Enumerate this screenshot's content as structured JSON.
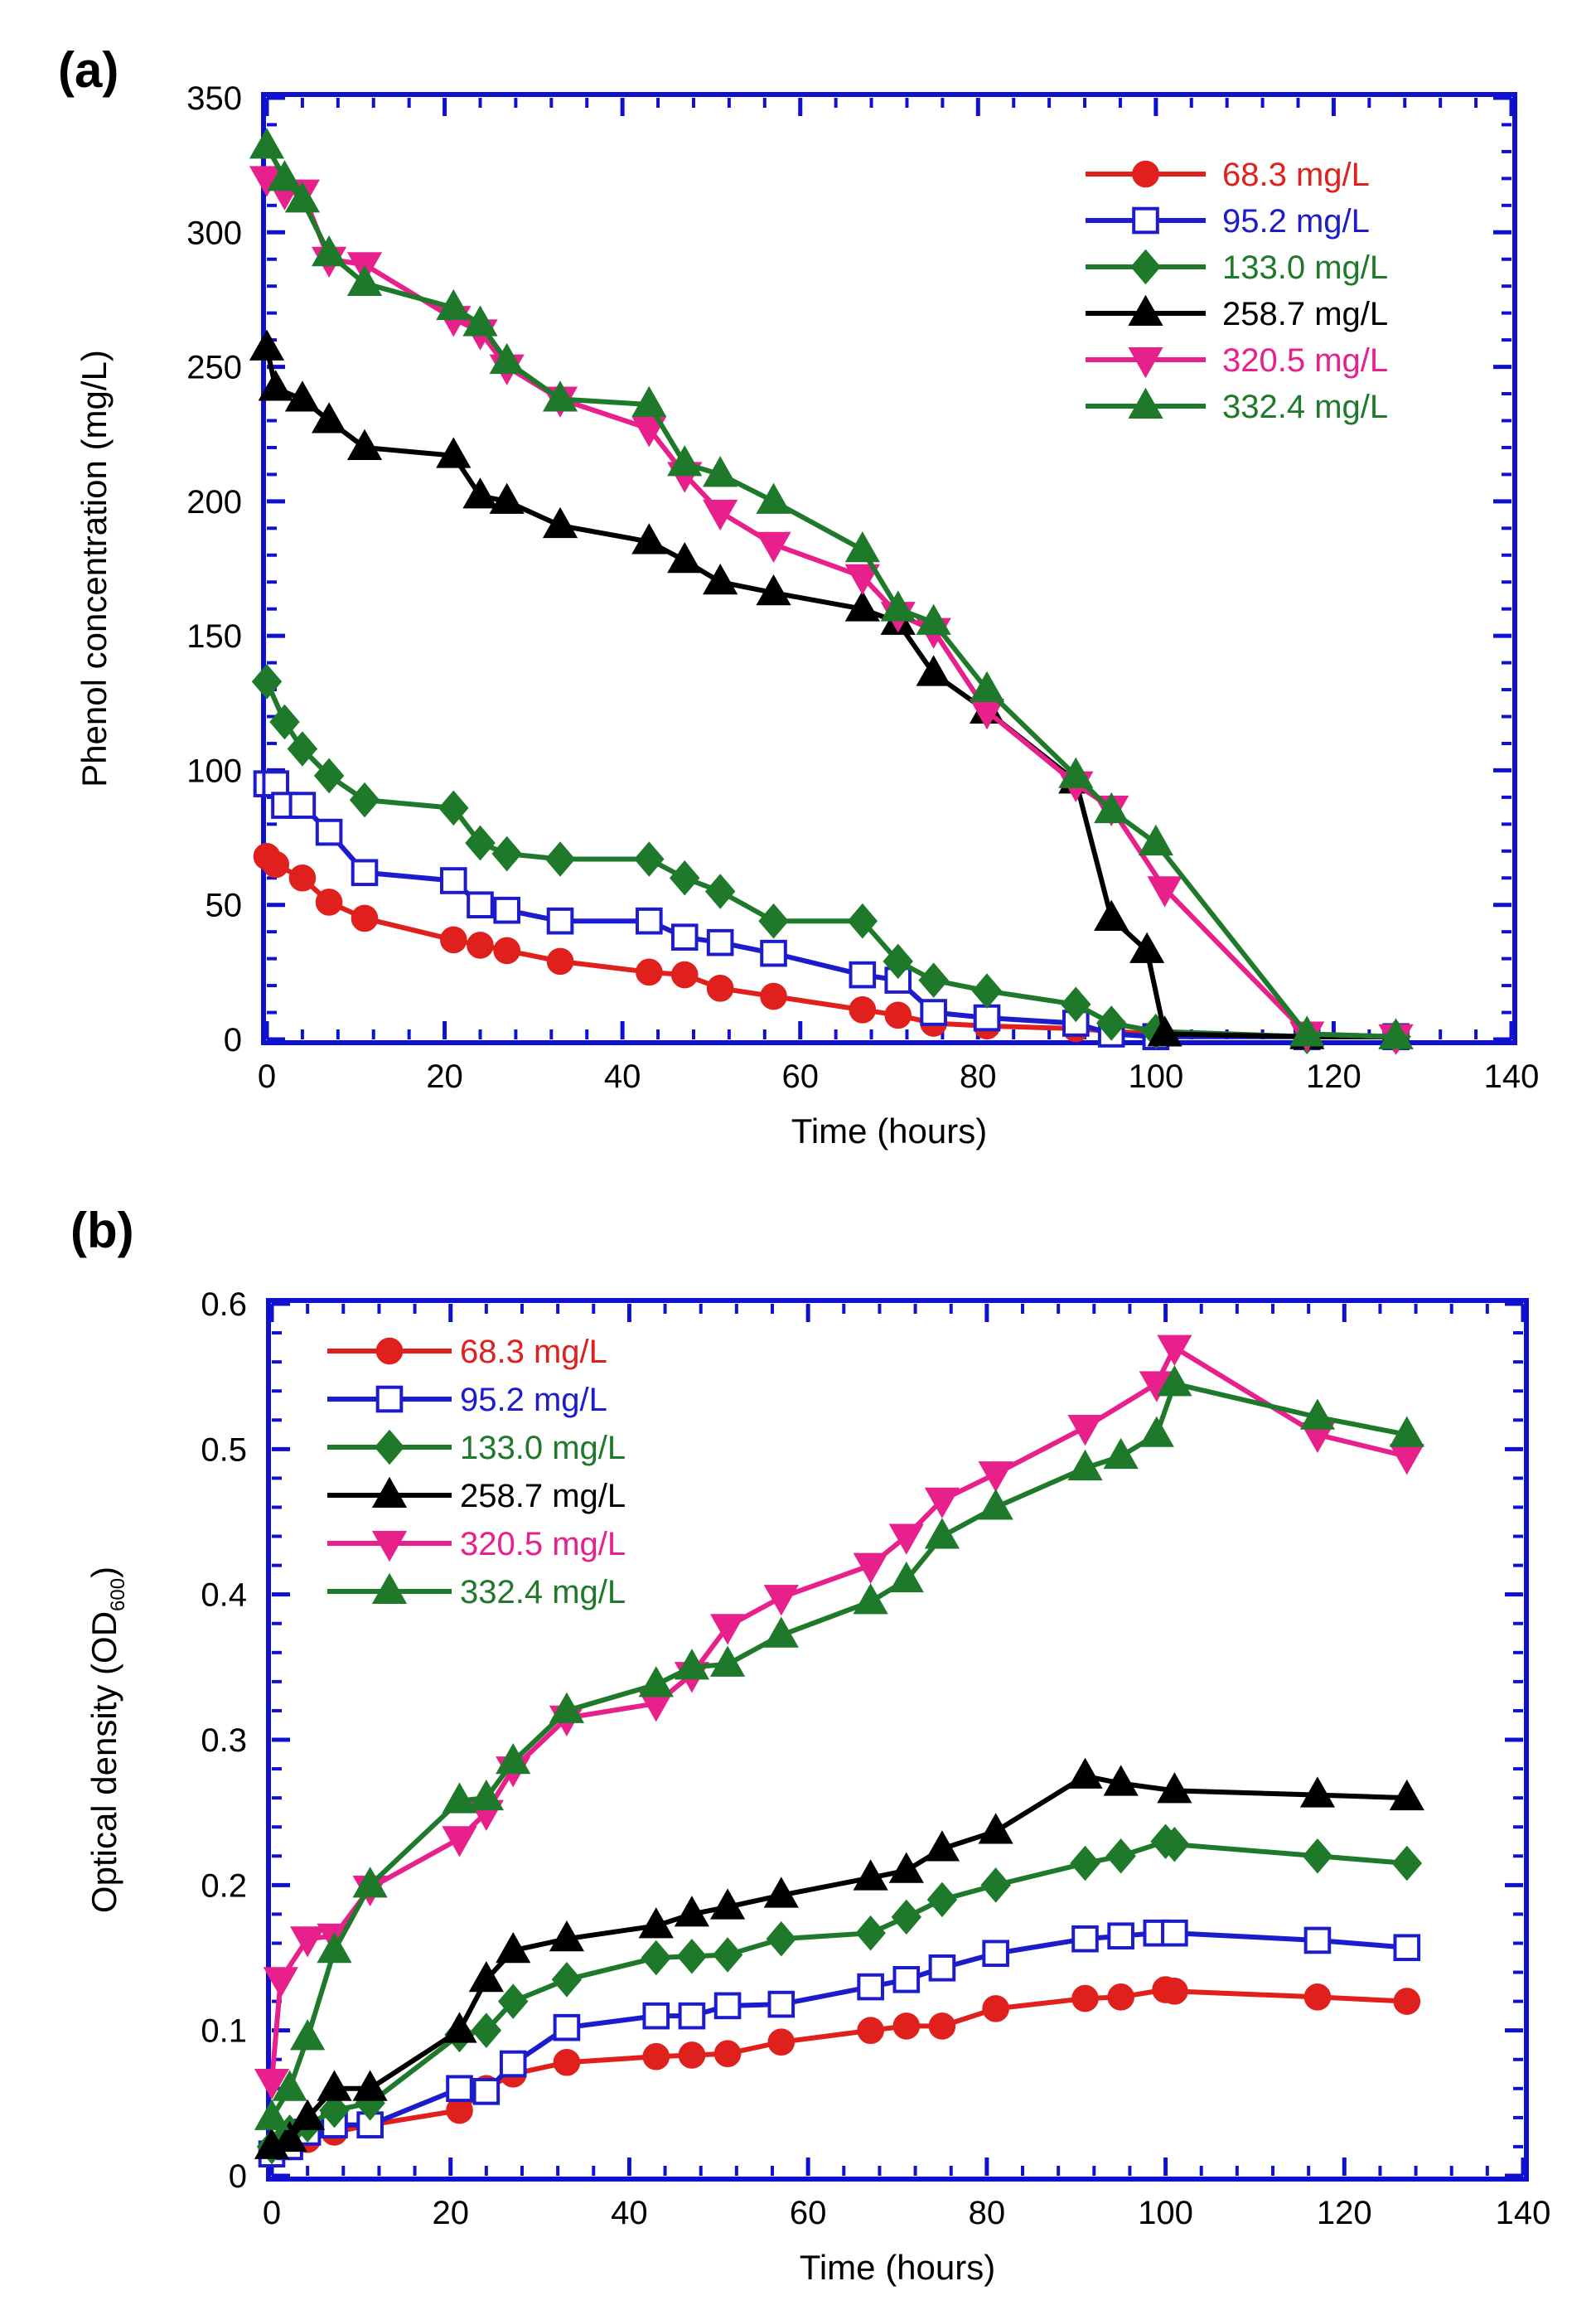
{
  "panels": [
    {
      "label": "(a)"
    },
    {
      "label": "(b)"
    }
  ],
  "chart_data": [
    {
      "type": "line",
      "xlabel": "Time (hours)",
      "ylabel": "Phenol concentration (mg/L)",
      "xlim": [
        0,
        140
      ],
      "ylim": [
        0,
        350
      ],
      "xticks": [
        0,
        20,
        40,
        60,
        80,
        100,
        120,
        140
      ],
      "yticks": [
        0,
        50,
        100,
        150,
        200,
        250,
        300,
        350
      ],
      "grid": false,
      "legend_position": "top-right",
      "frame_color": "#1010d0",
      "series": [
        {
          "name": "68.3 mg/L",
          "color": "#e0201c",
          "marker": "circle",
          "filled": true,
          "x": [
            0,
            1,
            4,
            7,
            11,
            21,
            24,
            27,
            33,
            43,
            47,
            51,
            57,
            67,
            71,
            75,
            81,
            91,
            95,
            100,
            117,
            127
          ],
          "y": [
            68,
            65,
            60,
            51,
            45,
            37,
            35,
            33,
            29,
            25,
            24,
            19,
            16,
            11,
            9,
            6,
            5,
            4,
            3,
            2,
            1,
            1
          ]
        },
        {
          "name": "95.2 mg/L",
          "color": "#1c1ccc",
          "marker": "square",
          "filled": false,
          "x": [
            0,
            1,
            2,
            4,
            7,
            11,
            21,
            24,
            27,
            33,
            43,
            47,
            51,
            57,
            67,
            71,
            75,
            81,
            91,
            95,
            100,
            117,
            127
          ],
          "y": [
            95,
            95,
            87,
            87,
            77,
            62,
            59,
            50,
            48,
            44,
            44,
            38,
            36,
            32,
            24,
            22,
            10,
            8,
            6,
            2,
            1,
            1,
            1
          ]
        },
        {
          "name": "133.0 mg/L",
          "color": "#1e7a2a",
          "marker": "diamond",
          "filled": true,
          "x": [
            0,
            2,
            4,
            7,
            11,
            21,
            24,
            27,
            33,
            43,
            47,
            51,
            57,
            67,
            71,
            75,
            81,
            91,
            95,
            100,
            117,
            127
          ],
          "y": [
            133,
            118,
            108,
            98,
            89,
            86,
            73,
            69,
            67,
            67,
            60,
            55,
            44,
            44,
            29,
            22,
            18,
            13,
            6,
            3,
            1,
            1
          ]
        },
        {
          "name": "258.7 mg/L",
          "color": "#000000",
          "marker": "triangle-up",
          "filled": true,
          "x": [
            0,
            1,
            4,
            7,
            11,
            21,
            24,
            27,
            33,
            43,
            47,
            51,
            57,
            67,
            71,
            75,
            81,
            91,
            95,
            99,
            101,
            117,
            127
          ],
          "y": [
            257,
            242,
            238,
            230,
            220,
            217,
            202,
            200,
            191,
            185,
            178,
            170,
            166,
            160,
            155,
            136,
            122,
            96,
            45,
            33,
            2,
            1,
            1
          ]
        },
        {
          "name": "320.5 mg/L",
          "color": "#e8208c",
          "marker": "triangle-down",
          "filled": true,
          "x": [
            0,
            2,
            4,
            7,
            11,
            21,
            24,
            27,
            33,
            43,
            47,
            51,
            57,
            67,
            71,
            75,
            81,
            91,
            95,
            101,
            117,
            127
          ],
          "y": [
            320,
            315,
            315,
            290,
            288,
            268,
            263,
            250,
            238,
            227,
            210,
            196,
            184,
            172,
            158,
            152,
            122,
            95,
            86,
            56,
            2,
            1
          ]
        },
        {
          "name": "332.4 mg/L",
          "color": "#1e7a2a",
          "marker": "triangle-up",
          "filled": true,
          "x": [
            0,
            2,
            4,
            7,
            11,
            21,
            24,
            27,
            33,
            43,
            47,
            51,
            57,
            67,
            71,
            75,
            81,
            91,
            95,
            100,
            117,
            127
          ],
          "y": [
            332,
            320,
            312,
            292,
            281,
            272,
            266,
            252,
            238,
            236,
            214,
            210,
            200,
            182,
            160,
            155,
            130,
            98,
            85,
            73,
            2,
            1
          ]
        }
      ]
    },
    {
      "type": "line",
      "xlabel": "Time (hours)",
      "ylabel": "Optical density (OD",
      "ylabel_sub": "600",
      "ylabel_end": ")",
      "xlim": [
        0,
        140
      ],
      "ylim": [
        0,
        0.6
      ],
      "xticks": [
        0,
        20,
        40,
        60,
        80,
        100,
        120,
        140
      ],
      "yticks": [
        0,
        0.1,
        0.2,
        0.3,
        0.4,
        0.5,
        0.6
      ],
      "ytick_labels": [
        "0",
        "0.1",
        "0.2",
        "0.3",
        "0.4",
        "0.5",
        "0.6"
      ],
      "grid": false,
      "legend_position": "top-left",
      "frame_color": "#1010d0",
      "series": [
        {
          "name": "68.3 mg/L",
          "color": "#e0201c",
          "marker": "circle",
          "filled": true,
          "x": [
            0,
            2,
            4,
            7,
            11,
            21,
            24,
            27,
            33,
            43,
            47,
            51,
            57,
            67,
            71,
            75,
            81,
            91,
            95,
            100,
            101,
            117,
            127
          ],
          "y": [
            0.015,
            0.02,
            0.025,
            0.03,
            0.035,
            0.045,
            0.06,
            0.07,
            0.078,
            0.082,
            0.083,
            0.084,
            0.092,
            0.1,
            0.103,
            0.103,
            0.115,
            0.122,
            0.123,
            0.128,
            0.127,
            0.123,
            0.12
          ]
        },
        {
          "name": "95.2 mg/L",
          "color": "#1c1ccc",
          "marker": "square",
          "filled": false,
          "x": [
            0,
            2,
            4,
            7,
            11,
            21,
            24,
            27,
            33,
            43,
            47,
            51,
            57,
            67,
            71,
            75,
            81,
            91,
            95,
            99,
            101,
            117,
            127
          ],
          "y": [
            0.015,
            0.02,
            0.03,
            0.035,
            0.035,
            0.06,
            0.058,
            0.077,
            0.102,
            0.11,
            0.11,
            0.117,
            0.118,
            0.13,
            0.135,
            0.143,
            0.153,
            0.163,
            0.165,
            0.167,
            0.167,
            0.162,
            0.157
          ]
        },
        {
          "name": "133.0 mg/L",
          "color": "#1e7a2a",
          "marker": "diamond",
          "filled": true,
          "x": [
            0,
            2,
            4,
            7,
            11,
            21,
            24,
            27,
            33,
            43,
            47,
            51,
            57,
            67,
            71,
            75,
            81,
            91,
            95,
            100,
            101,
            117,
            127
          ],
          "y": [
            0.02,
            0.03,
            0.035,
            0.045,
            0.05,
            0.097,
            0.1,
            0.12,
            0.135,
            0.15,
            0.151,
            0.152,
            0.163,
            0.167,
            0.178,
            0.19,
            0.2,
            0.215,
            0.22,
            0.23,
            0.228,
            0.22,
            0.215
          ]
        },
        {
          "name": "258.7 mg/L",
          "color": "#000000",
          "marker": "triangle-up",
          "filled": true,
          "x": [
            0,
            2,
            4,
            7,
            11,
            21,
            24,
            27,
            33,
            43,
            47,
            51,
            57,
            67,
            71,
            75,
            81,
            91,
            95,
            101,
            117,
            127
          ],
          "y": [
            0.02,
            0.025,
            0.04,
            0.06,
            0.06,
            0.1,
            0.135,
            0.155,
            0.163,
            0.172,
            0.18,
            0.185,
            0.193,
            0.205,
            0.21,
            0.225,
            0.237,
            0.275,
            0.27,
            0.265,
            0.262,
            0.26
          ]
        },
        {
          "name": "320.5 mg/L",
          "color": "#e8208c",
          "marker": "triangle-down",
          "filled": true,
          "x": [
            0,
            1,
            4,
            7,
            11,
            21,
            24,
            27,
            33,
            43,
            47,
            51,
            57,
            67,
            71,
            75,
            81,
            91,
            99,
            101,
            117,
            127
          ],
          "y": [
            0.065,
            0.135,
            0.163,
            0.165,
            0.198,
            0.232,
            0.25,
            0.28,
            0.315,
            0.325,
            0.345,
            0.378,
            0.398,
            0.42,
            0.44,
            0.465,
            0.483,
            0.515,
            0.545,
            0.57,
            0.51,
            0.495
          ]
        },
        {
          "name": "332.4 mg/L",
          "color": "#1e7a2a",
          "marker": "triangle-up",
          "filled": true,
          "x": [
            0,
            2,
            4,
            7,
            11,
            21,
            24,
            27,
            33,
            43,
            47,
            51,
            57,
            67,
            71,
            75,
            81,
            91,
            95,
            99,
            101,
            117,
            127
          ],
          "y": [
            0.04,
            0.06,
            0.095,
            0.155,
            0.2,
            0.258,
            0.26,
            0.285,
            0.32,
            0.338,
            0.35,
            0.352,
            0.372,
            0.395,
            0.41,
            0.44,
            0.46,
            0.487,
            0.495,
            0.51,
            0.545,
            0.522,
            0.51
          ]
        }
      ]
    }
  ]
}
